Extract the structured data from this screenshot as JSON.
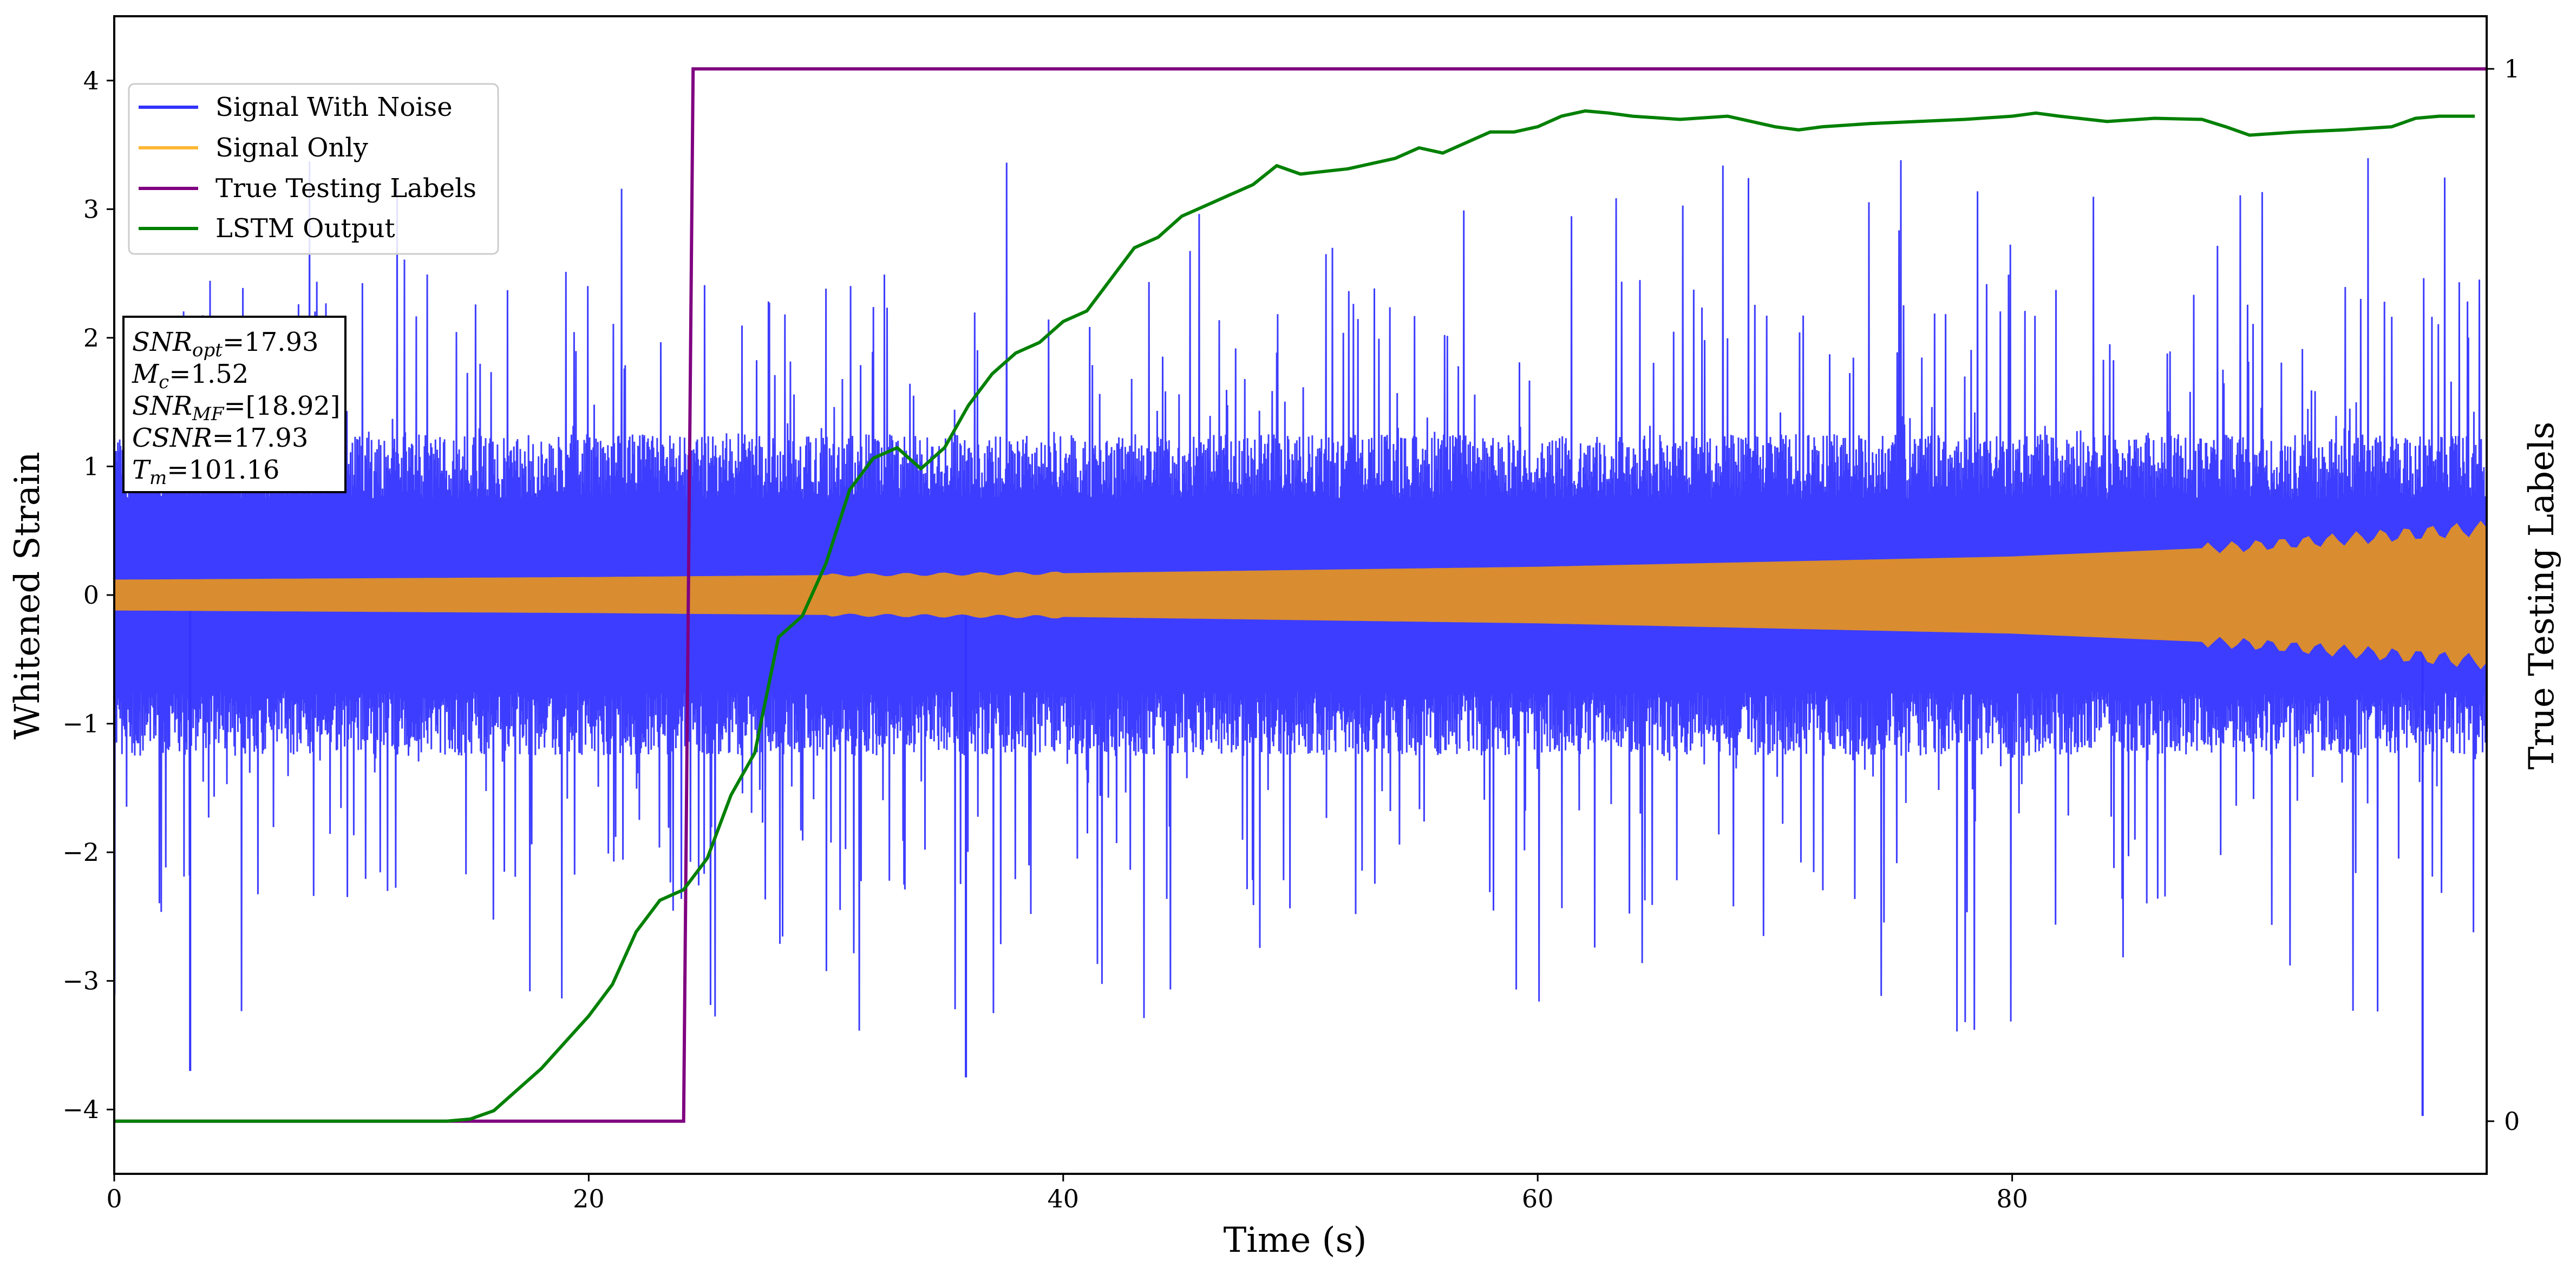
{
  "chart_data": {
    "type": "line",
    "xlabel": "Time (s)",
    "ylabel": "Whitened Strain",
    "y2label": "True Testing Labels",
    "xlim": [
      0,
      100
    ],
    "ylim": [
      -4.5,
      4.5
    ],
    "y2lim": [
      -0.05,
      1.05
    ],
    "x_ticks": [
      0,
      20,
      40,
      60,
      80
    ],
    "y_ticks": [
      -4,
      -3,
      -2,
      -1,
      0,
      1,
      2,
      3,
      4
    ],
    "y2_ticks": [
      0,
      1
    ],
    "legend_position": "upper-left",
    "legend": [
      {
        "name": "Signal With Noise",
        "color": "#3333ff"
      },
      {
        "name": "Signal Only",
        "color": "#ffb733"
      },
      {
        "name": "True Testing Labels",
        "color": "#800080"
      },
      {
        "name": "LSTM Output",
        "color": "#008000"
      }
    ],
    "info_box": [
      {
        "base": "SNR",
        "sub": "opt",
        "value": "=17.93"
      },
      {
        "base": "M",
        "sub": "c",
        "value": "=1.52"
      },
      {
        "base": "SNR",
        "sub": "MF",
        "value": "=[18.92]"
      },
      {
        "base": "CSNR",
        "sub": "",
        "value": "=17.93"
      },
      {
        "base": "T",
        "sub": "m",
        "value": "=101.16"
      }
    ],
    "series": [
      {
        "name": "Signal With Noise",
        "axis": "left",
        "color": "#3333ff",
        "band": {
          "core_amplitude": 1.0,
          "typical_peak": 2.5,
          "max_peak": 3.4,
          "min_trough": -4.05
        }
      },
      {
        "name": "Signal Only",
        "axis": "left",
        "color": "#ffb733",
        "envelope_x": [
          0,
          20,
          40,
          60,
          80,
          90,
          100
        ],
        "envelope_amplitude": [
          0.12,
          0.14,
          0.17,
          0.22,
          0.3,
          0.38,
          0.52
        ]
      },
      {
        "name": "True Testing Labels",
        "axis": "right",
        "color": "#800080",
        "x": [
          0,
          24.0,
          24.4,
          24.6,
          100
        ],
        "values": [
          0,
          0,
          1,
          1,
          1
        ]
      },
      {
        "name": "LSTM Output",
        "axis": "right",
        "color": "#008000",
        "x": [
          0,
          14,
          15,
          16,
          17,
          18,
          19,
          20,
          21,
          22,
          23,
          24,
          25,
          26,
          27,
          28,
          29,
          30,
          31,
          32,
          33,
          34,
          35,
          36,
          37,
          38,
          39,
          40,
          41,
          42,
          43,
          44,
          45,
          46,
          47,
          48,
          49,
          50,
          52,
          54,
          55,
          56,
          57,
          58,
          59,
          60,
          61,
          62,
          63,
          64,
          66,
          68,
          70,
          71,
          72,
          74,
          76,
          78,
          80,
          81,
          82,
          84,
          86,
          88,
          89,
          90,
          92,
          94,
          96,
          97,
          98,
          99.5
        ],
        "values": [
          0.0,
          0.0,
          0.002,
          0.01,
          0.03,
          0.05,
          0.075,
          0.1,
          0.13,
          0.18,
          0.21,
          0.22,
          0.25,
          0.31,
          0.35,
          0.46,
          0.48,
          0.53,
          0.6,
          0.63,
          0.64,
          0.62,
          0.64,
          0.68,
          0.71,
          0.73,
          0.74,
          0.76,
          0.77,
          0.8,
          0.83,
          0.84,
          0.86,
          0.87,
          0.88,
          0.89,
          0.908,
          0.9,
          0.905,
          0.915,
          0.925,
          0.92,
          0.93,
          0.94,
          0.94,
          0.945,
          0.955,
          0.96,
          0.958,
          0.955,
          0.952,
          0.955,
          0.945,
          0.942,
          0.945,
          0.948,
          0.95,
          0.952,
          0.955,
          0.958,
          0.955,
          0.95,
          0.953,
          0.952,
          0.945,
          0.937,
          0.94,
          0.942,
          0.945,
          0.953,
          0.955,
          0.955
        ]
      }
    ]
  }
}
